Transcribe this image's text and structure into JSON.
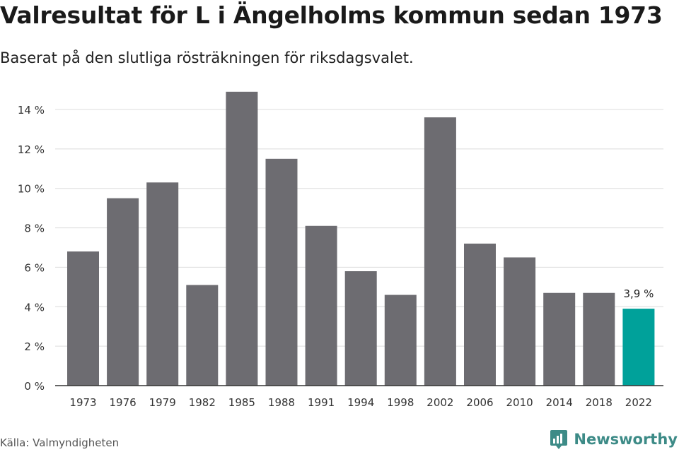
{
  "header": {
    "title": "Valresultat för L i Ängelholms kommun sedan 1973",
    "subtitle": "Baserat på den slutliga rösträkningen för riksdagsvalet."
  },
  "footer": {
    "source": "Källa: Valmyndigheten",
    "brand": "Newsworthy"
  },
  "colors": {
    "bar": "#6d6c71",
    "highlight": "#00a19a",
    "grid": "#dcdcdc",
    "axis": "#333333",
    "brand": "#3d8b87"
  },
  "chart_data": {
    "type": "bar",
    "categories": [
      "1973",
      "1976",
      "1979",
      "1982",
      "1985",
      "1988",
      "1991",
      "1994",
      "1998",
      "2002",
      "2006",
      "2010",
      "2014",
      "2018",
      "2022"
    ],
    "values": [
      6.8,
      9.5,
      10.3,
      5.1,
      14.9,
      11.5,
      8.1,
      5.8,
      4.6,
      13.6,
      7.2,
      6.5,
      4.7,
      4.7,
      3.9
    ],
    "ylim": [
      0,
      14
    ],
    "yticks": [
      0,
      2,
      4,
      6,
      8,
      10,
      12,
      14
    ],
    "ytick_labels": [
      "0 %",
      "2 %",
      "4 %",
      "6 %",
      "8 %",
      "10 %",
      "12 %",
      "14 %"
    ],
    "highlight_index": 14,
    "annotation": "3,9 %",
    "xlabel": "",
    "ylabel": "",
    "grid": true,
    "legend": "none"
  }
}
